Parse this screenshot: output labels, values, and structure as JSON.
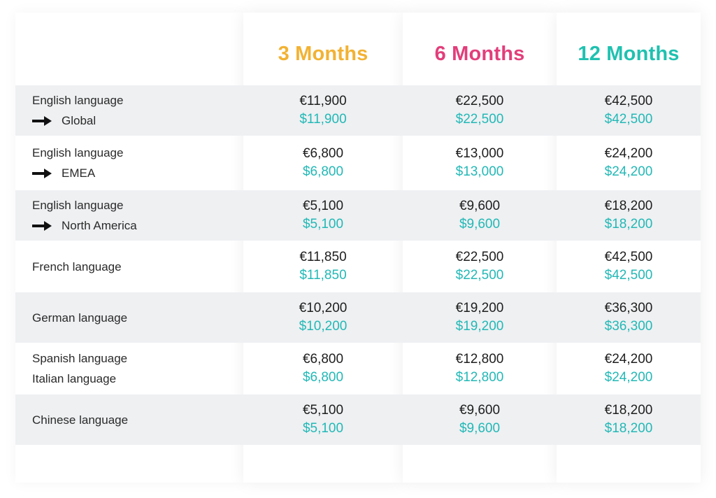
{
  "headers": [
    "3 Months",
    "6 Months",
    "12 Months"
  ],
  "colors": {
    "header_3": "#f2b233",
    "header_6": "#e23e7a",
    "header_12": "#1fc1b0",
    "usd": "#22b8b6",
    "row_shade": "#eef0f2"
  },
  "rows": [
    {
      "label": "English language",
      "sub": "Global",
      "arrow": true,
      "prices": [
        {
          "eur": "€11,900",
          "usd": "$11,900"
        },
        {
          "eur": "€22,500",
          "usd": "$22,500"
        },
        {
          "eur": "€42,500",
          "usd": "$42,500"
        }
      ]
    },
    {
      "label": "English language",
      "sub": "EMEA",
      "arrow": true,
      "prices": [
        {
          "eur": "€6,800",
          "usd": "$6,800"
        },
        {
          "eur": "€13,000",
          "usd": "$13,000"
        },
        {
          "eur": "€24,200",
          "usd": "$24,200"
        }
      ]
    },
    {
      "label": "English language",
      "sub": "North America",
      "arrow": true,
      "prices": [
        {
          "eur": "€5,100",
          "usd": "$5,100"
        },
        {
          "eur": "€9,600",
          "usd": "$9,600"
        },
        {
          "eur": "€18,200",
          "usd": "$18,200"
        }
      ]
    },
    {
      "label": "French language",
      "sub": "",
      "arrow": false,
      "prices": [
        {
          "eur": "€11,850",
          "usd": "$11,850"
        },
        {
          "eur": "€22,500",
          "usd": "$22,500"
        },
        {
          "eur": "€42,500",
          "usd": "$42,500"
        }
      ]
    },
    {
      "label": "German language",
      "sub": "",
      "arrow": false,
      "prices": [
        {
          "eur": "€10,200",
          "usd": "$10,200"
        },
        {
          "eur": "€19,200",
          "usd": "$19,200"
        },
        {
          "eur": "€36,300",
          "usd": "$36,300"
        }
      ]
    },
    {
      "label": "Spanish language",
      "sub": "Italian language",
      "arrow": false,
      "prices": [
        {
          "eur": "€6,800",
          "usd": "$6,800"
        },
        {
          "eur": "€12,800",
          "usd": "$12,800"
        },
        {
          "eur": "€24,200",
          "usd": "$24,200"
        }
      ]
    },
    {
      "label": "Chinese language",
      "sub": "",
      "arrow": false,
      "prices": [
        {
          "eur": "€5,100",
          "usd": "$5,100"
        },
        {
          "eur": "€9,600",
          "usd": "$9,600"
        },
        {
          "eur": "€18,200",
          "usd": "$18,200"
        }
      ]
    }
  ]
}
